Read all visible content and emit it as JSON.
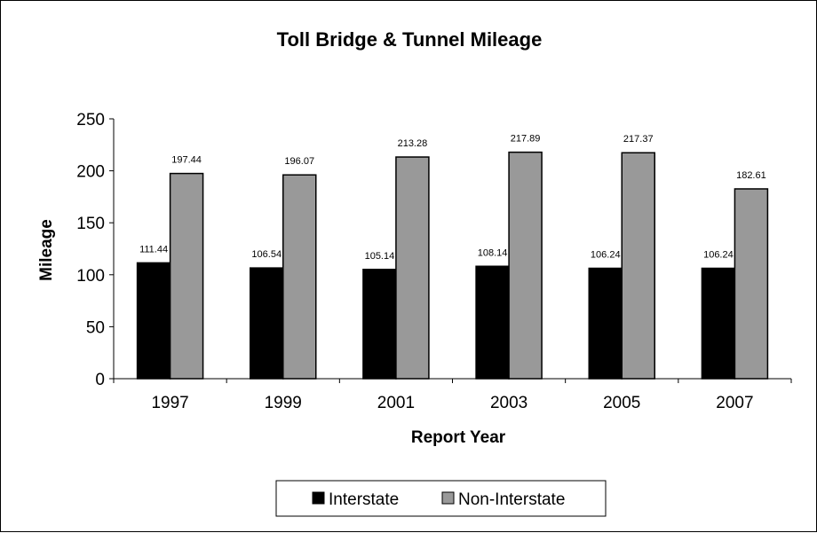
{
  "chart_data": {
    "type": "bar",
    "title": "Toll Bridge & Tunnel Mileage",
    "xlabel": "Report Year",
    "ylabel": "Mileage",
    "categories": [
      "1997",
      "1999",
      "2001",
      "2003",
      "2005",
      "2007"
    ],
    "series": [
      {
        "name": "Interstate",
        "color": "#000000",
        "values": [
          111.44,
          106.54,
          105.14,
          108.14,
          106.24,
          106.24
        ],
        "labels": [
          "111.44",
          "106.54",
          "105.14",
          "108.14",
          "106.24",
          "106.24"
        ]
      },
      {
        "name": "Non-Interstate",
        "color": "#999999",
        "values": [
          197.44,
          196.07,
          213.28,
          217.89,
          217.37,
          182.61
        ],
        "labels": [
          "197.44",
          "196.07",
          "213.28",
          "217.89",
          "217.37",
          "182.61"
        ]
      }
    ],
    "ylim": [
      0,
      250
    ],
    "yticks": [
      "0",
      "50",
      "100",
      "150",
      "200",
      "250"
    ],
    "grid": false,
    "legend_position": "bottom"
  }
}
